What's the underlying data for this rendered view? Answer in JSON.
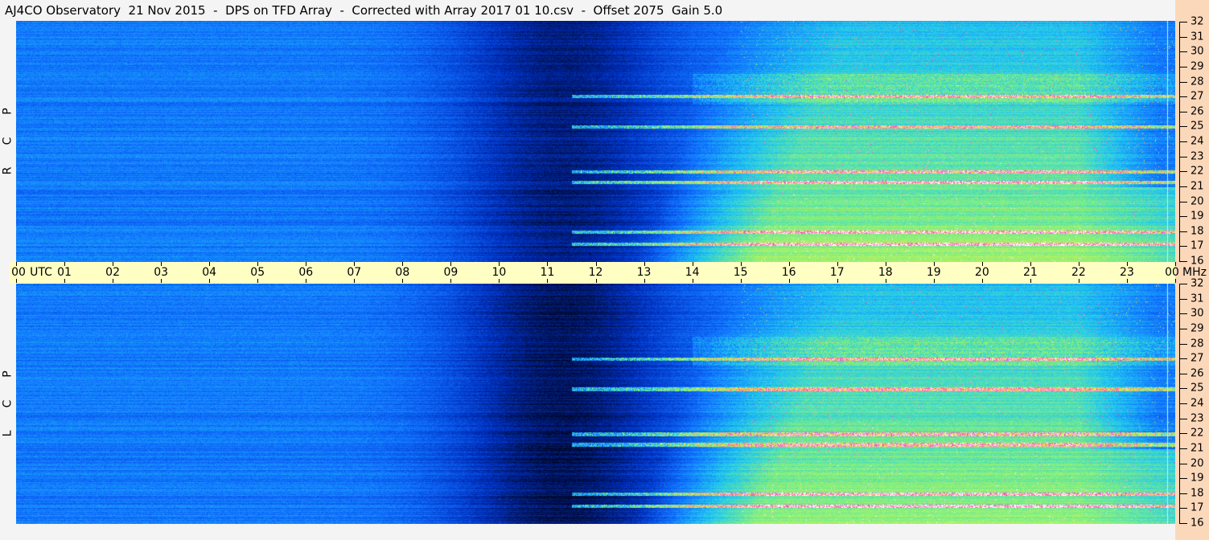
{
  "title": "AJ4CO Observatory  21 Nov 2015  -  DPS on TFD Array  -  Corrected with Array 2017 01 10.csv  -  Offset 2075  Gain 5.0",
  "chart_data": {
    "type": "heatmap",
    "title": "AJ4CO Observatory  21 Nov 2015  -  DPS on TFD Array  -  Corrected with Array 2017 01 10.csv  -  Offset 2075  Gain 5.0",
    "xlabel": "UTC",
    "ylabel": "MHz",
    "xlim": [
      0,
      24
    ],
    "ylim": [
      16,
      32
    ],
    "x_ticks": [
      "00",
      "01",
      "02",
      "03",
      "04",
      "05",
      "06",
      "07",
      "08",
      "09",
      "10",
      "11",
      "12",
      "13",
      "14",
      "15",
      "16",
      "17",
      "18",
      "19",
      "20",
      "21",
      "22",
      "23",
      "00"
    ],
    "y_ticks": [
      "32",
      "31",
      "30",
      "29",
      "28",
      "27",
      "26",
      "25",
      "24",
      "23",
      "22",
      "21",
      "20",
      "19",
      "18",
      "17",
      "16"
    ],
    "panels": [
      {
        "label": [
          "R",
          "C",
          "P"
        ],
        "name": "RCP"
      },
      {
        "label": [
          "L",
          "C",
          "P"
        ],
        "name": "LCP"
      }
    ],
    "colormap": [
      "#000628",
      "#0030c0",
      "#1070ff",
      "#20c8f0",
      "#80f080",
      "#f0f040",
      "#ff40c0",
      "#ffffff"
    ],
    "features": {
      "night_minimum_utc": 11.5,
      "daytime_rise_utc": 13,
      "strong_bands_mhz": [
        27,
        21.3,
        17.2,
        25,
        22,
        18
      ]
    }
  }
}
